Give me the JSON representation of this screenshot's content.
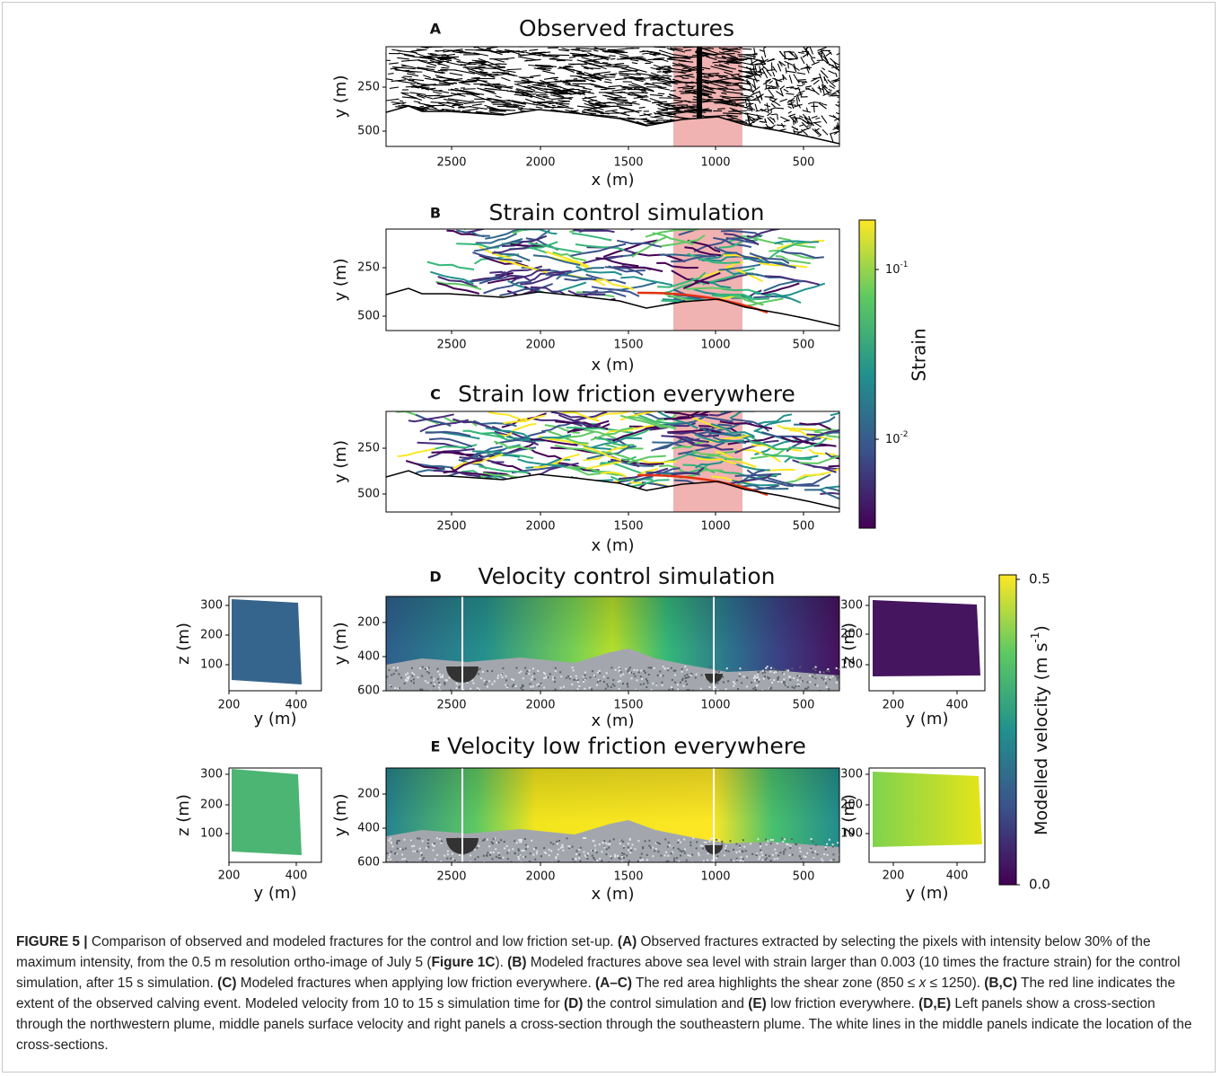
{
  "panels": [
    {
      "label": "A",
      "title": "Observed fractures",
      "xlabel": "x (m)",
      "ylabel": "y (m)",
      "xticks": [
        "2500",
        "2000",
        "1500",
        "1000",
        "500"
      ],
      "yticks": [
        "250",
        "500"
      ]
    },
    {
      "label": "B",
      "title": "Strain control simulation",
      "xlabel": "x (m)",
      "ylabel": "y (m)",
      "xticks": [
        "2500",
        "2000",
        "1500",
        "1000",
        "500"
      ],
      "yticks": [
        "250",
        "500"
      ]
    },
    {
      "label": "C",
      "title": "Strain  low friction everywhere",
      "xlabel": "x (m)",
      "ylabel": "y (m)",
      "xticks": [
        "2500",
        "2000",
        "1500",
        "1000",
        "500"
      ],
      "yticks": [
        "250",
        "500"
      ]
    },
    {
      "label": "D",
      "title": "Velocity control simulation",
      "xlabel": "x (m)",
      "ylabel": "y (m)",
      "xticks": [
        "2500",
        "2000",
        "1500",
        "1000",
        "500"
      ],
      "yticks": [
        "200",
        "400",
        "600"
      ]
    },
    {
      "label": "E",
      "title": "Velocity low friction everywhere",
      "xlabel": "x (m)",
      "ylabel": "y (m)",
      "xticks": [
        "2500",
        "2000",
        "1500",
        "1000",
        "500"
      ],
      "yticks": [
        "200",
        "400",
        "600"
      ]
    }
  ],
  "cross_sections": [
    {
      "xlabel": "y (m)",
      "ylabel": "z (m)",
      "xticks": [
        "200",
        "400"
      ],
      "yticks": [
        "300",
        "200",
        "100"
      ]
    },
    {
      "xlabel": "y (m)",
      "ylabel": "z (m)",
      "xticks": [
        "200",
        "400"
      ],
      "yticks": [
        "300",
        "200",
        "100"
      ]
    },
    {
      "xlabel": "y (m)",
      "ylabel": "z (m)",
      "xticks": [
        "200",
        "400"
      ],
      "yticks": [
        "300",
        "200",
        "100"
      ]
    },
    {
      "xlabel": "y (m)",
      "ylabel": "z (m)",
      "xticks": [
        "200",
        "400"
      ],
      "yticks": [
        "300",
        "200",
        "100"
      ]
    }
  ],
  "strain_colorbar": {
    "label": "Strain",
    "ticks": [
      {
        "base": "10",
        "exp": "-1"
      },
      {
        "base": "10",
        "exp": "-2"
      }
    ]
  },
  "velocity_colorbar": {
    "label": [
      "Modelled velocity (m s",
      "-1",
      ")"
    ],
    "ticks": [
      "0.5",
      "0.0"
    ]
  },
  "caption": [
    {
      "text": "FIGURE 5 | ",
      "bold": true
    },
    {
      "text": "Comparison of observed and modeled fractures for the control and low friction set-up. "
    },
    {
      "text": "(A)",
      "bold": true
    },
    {
      "text": " Observed fractures extracted by selecting the pixels with intensity below 30% of the maximum intensity, from the 0.5 m resolution ortho-image of July 5 ("
    },
    {
      "text": "Figure 1C",
      "bold": true
    },
    {
      "text": "). "
    },
    {
      "text": "(B)",
      "bold": true
    },
    {
      "text": " Modeled fractures above sea level with strain larger than 0.003 (10 times the fracture strain) for the control simulation, after 15 s simulation. "
    },
    {
      "text": "(C)",
      "bold": true
    },
    {
      "text": " Modeled fractures when applying low friction everywhere. "
    },
    {
      "text": "(A–C)",
      "bold": true
    },
    {
      "text": " The red area highlights the shear zone (850 ≤ "
    },
    {
      "text": "x",
      "italic": true
    },
    {
      "text": " ≤ 1250). "
    },
    {
      "text": "(B,C)",
      "bold": true
    },
    {
      "text": " The red line indicates the extent of the observed calving event. Modeled velocity from 10 to 15 s simulation time for "
    },
    {
      "text": "(D)",
      "bold": true
    },
    {
      "text": " the control simulation and "
    },
    {
      "text": "(E)",
      "bold": true
    },
    {
      "text": " low friction everywhere. "
    },
    {
      "text": "(D,E)",
      "bold": true
    },
    {
      "text": " Left panels show a cross-section through the northwestern plume, middle panels surface velocity and right panels a cross-section through the southeastern plume. The white lines in the middle panels indicate the location of the cross-sections."
    }
  ]
}
